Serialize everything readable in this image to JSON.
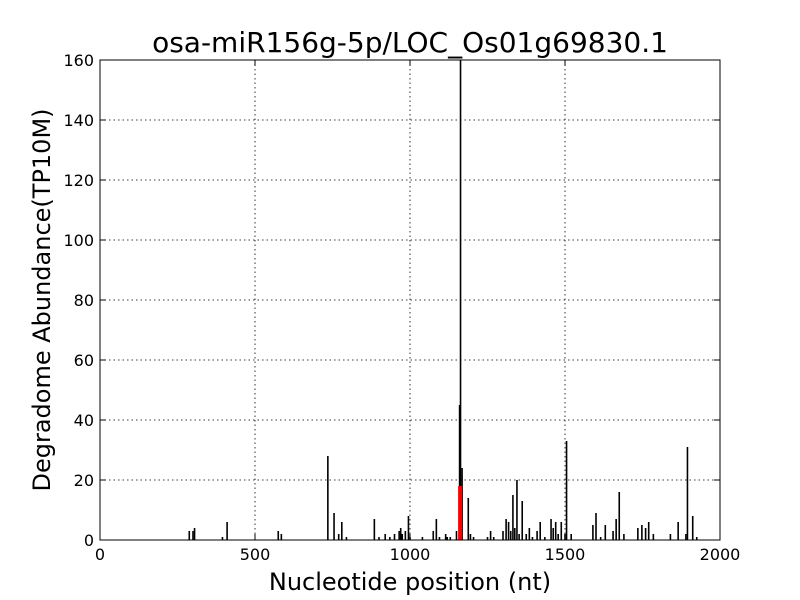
{
  "chart_data": {
    "type": "bar",
    "title": "osa-miR156g-5p/LOC_Os01g69830.1",
    "xlabel": "Nucleotide position (nt)",
    "ylabel": "Degradome Abundance(TP10M)",
    "xlim": [
      0,
      2000
    ],
    "ylim": [
      0,
      160
    ],
    "xticks": [
      "0",
      "500",
      "1000",
      "1500",
      "2000"
    ],
    "yticks": [
      "0",
      "20",
      "40",
      "60",
      "80",
      "100",
      "120",
      "140",
      "160"
    ],
    "grid": true,
    "colors": {
      "bars": "#000000",
      "highlight": "#ff0000",
      "grid": "#000000"
    },
    "series": [
      {
        "values": [
          {
            "x": 288,
            "y": 3
          },
          {
            "x": 300,
            "y": 3
          },
          {
            "x": 305,
            "y": 4
          },
          {
            "x": 395,
            "y": 1
          },
          {
            "x": 410,
            "y": 6
          },
          {
            "x": 575,
            "y": 3
          },
          {
            "x": 585,
            "y": 2
          },
          {
            "x": 735,
            "y": 28
          },
          {
            "x": 755,
            "y": 9
          },
          {
            "x": 770,
            "y": 2
          },
          {
            "x": 780,
            "y": 6
          },
          {
            "x": 795,
            "y": 1
          },
          {
            "x": 885,
            "y": 7
          },
          {
            "x": 900,
            "y": 1
          },
          {
            "x": 920,
            "y": 2
          },
          {
            "x": 935,
            "y": 1
          },
          {
            "x": 950,
            "y": 2
          },
          {
            "x": 965,
            "y": 3
          },
          {
            "x": 970,
            "y": 4
          },
          {
            "x": 975,
            "y": 2
          },
          {
            "x": 985,
            "y": 3
          },
          {
            "x": 995,
            "y": 8
          },
          {
            "x": 1000,
            "y": 1
          },
          {
            "x": 1040,
            "y": 1
          },
          {
            "x": 1075,
            "y": 3
          },
          {
            "x": 1085,
            "y": 7
          },
          {
            "x": 1095,
            "y": 1
          },
          {
            "x": 1115,
            "y": 2
          },
          {
            "x": 1120,
            "y": 1
          },
          {
            "x": 1130,
            "y": 1
          },
          {
            "x": 1150,
            "y": 3
          },
          {
            "x": 1160,
            "y": 45
          },
          {
            "x": 1163,
            "y": 160
          },
          {
            "x": 1168,
            "y": 24
          },
          {
            "x": 1188,
            "y": 14
          },
          {
            "x": 1195,
            "y": 2
          },
          {
            "x": 1205,
            "y": 1
          },
          {
            "x": 1250,
            "y": 1
          },
          {
            "x": 1260,
            "y": 3
          },
          {
            "x": 1270,
            "y": 1
          },
          {
            "x": 1300,
            "y": 3
          },
          {
            "x": 1310,
            "y": 7
          },
          {
            "x": 1318,
            "y": 6
          },
          {
            "x": 1325,
            "y": 3
          },
          {
            "x": 1332,
            "y": 15
          },
          {
            "x": 1338,
            "y": 4
          },
          {
            "x": 1345,
            "y": 20
          },
          {
            "x": 1352,
            "y": 2
          },
          {
            "x": 1362,
            "y": 13
          },
          {
            "x": 1375,
            "y": 2
          },
          {
            "x": 1385,
            "y": 4
          },
          {
            "x": 1395,
            "y": 1
          },
          {
            "x": 1410,
            "y": 3
          },
          {
            "x": 1420,
            "y": 6
          },
          {
            "x": 1435,
            "y": 1
          },
          {
            "x": 1455,
            "y": 7
          },
          {
            "x": 1462,
            "y": 4
          },
          {
            "x": 1470,
            "y": 6
          },
          {
            "x": 1478,
            "y": 2
          },
          {
            "x": 1488,
            "y": 6
          },
          {
            "x": 1500,
            "y": 2
          },
          {
            "x": 1505,
            "y": 33
          },
          {
            "x": 1520,
            "y": 2
          },
          {
            "x": 1590,
            "y": 5
          },
          {
            "x": 1600,
            "y": 9
          },
          {
            "x": 1615,
            "y": 1
          },
          {
            "x": 1630,
            "y": 5
          },
          {
            "x": 1655,
            "y": 3
          },
          {
            "x": 1665,
            "y": 7
          },
          {
            "x": 1675,
            "y": 16
          },
          {
            "x": 1690,
            "y": 2
          },
          {
            "x": 1735,
            "y": 4
          },
          {
            "x": 1748,
            "y": 5
          },
          {
            "x": 1760,
            "y": 4
          },
          {
            "x": 1770,
            "y": 6
          },
          {
            "x": 1785,
            "y": 2
          },
          {
            "x": 1840,
            "y": 2
          },
          {
            "x": 1865,
            "y": 6
          },
          {
            "x": 1890,
            "y": 2
          },
          {
            "x": 1895,
            "y": 31
          },
          {
            "x": 1912,
            "y": 8
          },
          {
            "x": 1925,
            "y": 1
          }
        ]
      }
    ],
    "highlight": [
      {
        "x": 1160,
        "y": 18
      }
    ]
  }
}
